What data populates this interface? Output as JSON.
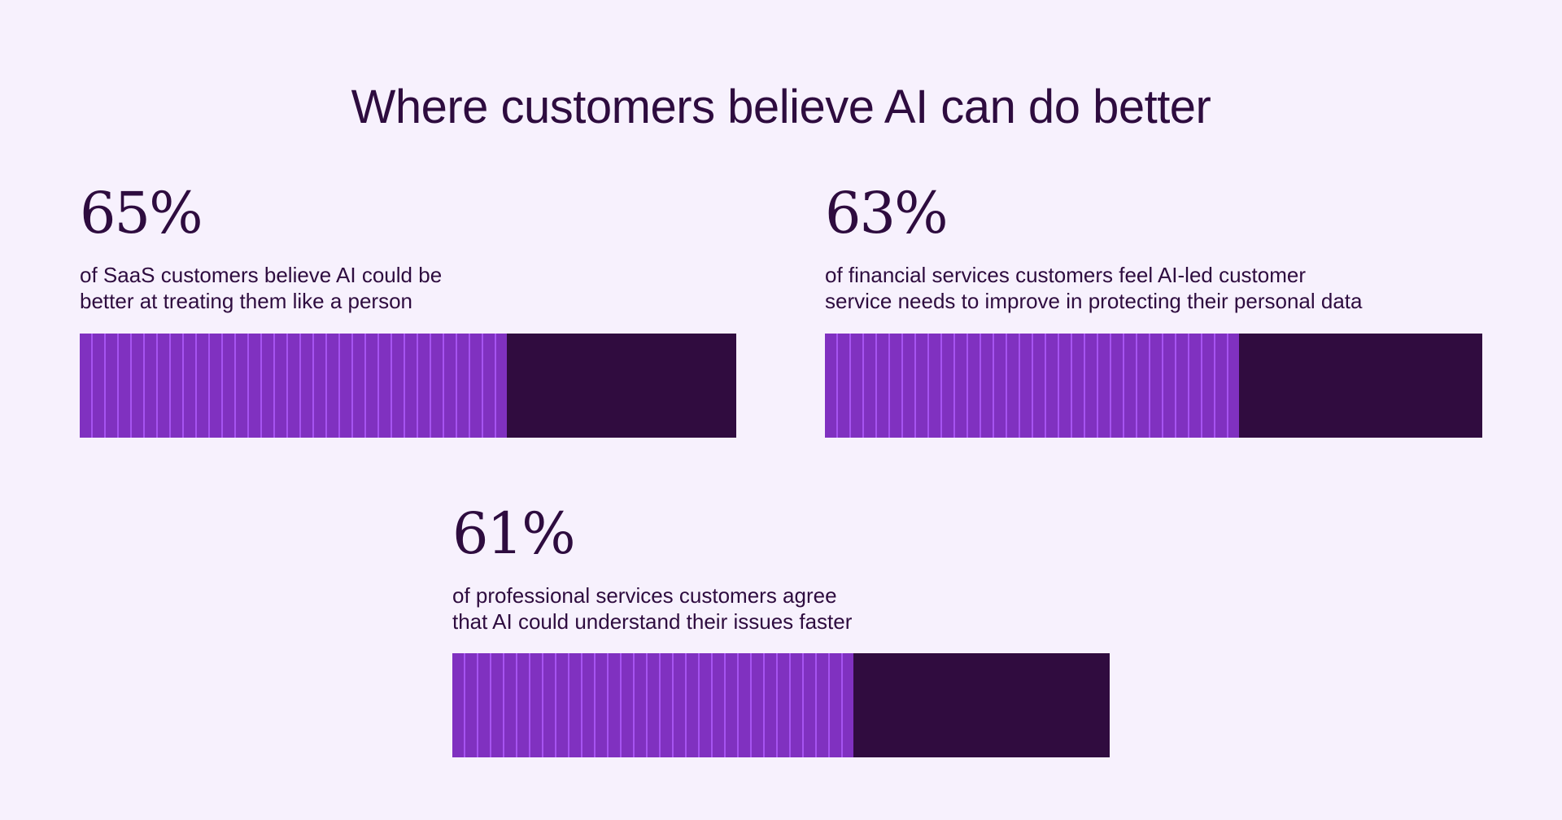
{
  "title": "Where customers believe AI can do better",
  "colors": {
    "background": "#f7f1fd",
    "fill": "#8031c0",
    "stripe": "#a654f0",
    "remainder": "#300c3f",
    "text": "#2e0c3f"
  },
  "chart_data": {
    "type": "bar",
    "title": "Where customers believe AI can do better",
    "categories": [
      "SaaS",
      "Financial services",
      "Professional services"
    ],
    "values": [
      65,
      63,
      61
    ],
    "ylim": [
      0,
      100
    ],
    "items": [
      {
        "value_label": "65%",
        "value": 65,
        "description": "of SaaS customers believe AI could be\nbetter at treating them like a person"
      },
      {
        "value_label": "63%",
        "value": 63,
        "description": "of financial services customers feel AI-led customer\nservice needs to improve in protecting their personal data"
      },
      {
        "value_label": "61%",
        "value": 61,
        "description": "of professional services customers agree\nthat AI could understand their issues faster"
      }
    ]
  }
}
